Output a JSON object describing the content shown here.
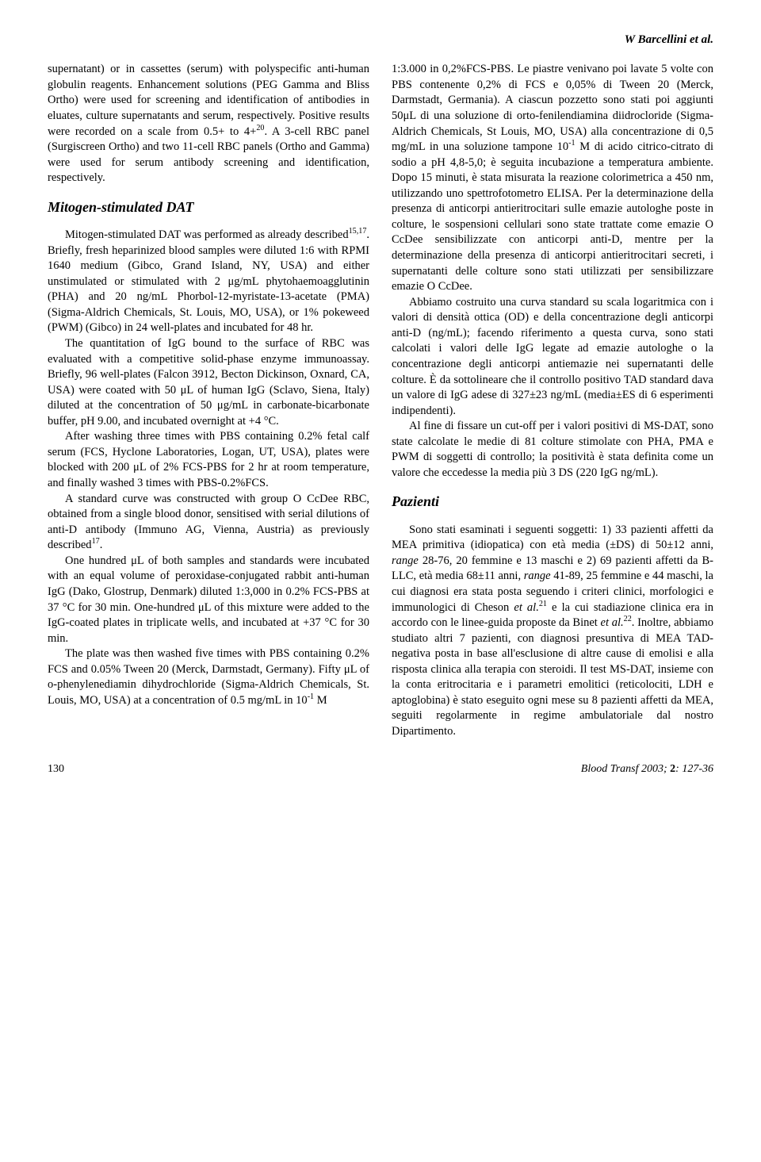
{
  "header": {
    "running_head": "W Barcellini et al."
  },
  "left_col": {
    "p1": "supernatant) or in cassettes (serum) with polyspecific anti-human globulin reagents. Enhancement solutions (PEG Gamma and Bliss Ortho) were used for screening and identification of antibodies in eluates, culture supernatants and serum, respectively. Positive results were recorded on a scale from 0.5+ to 4+20. A 3-cell RBC panel (Surgiscreen Ortho) and two 11-cell RBC panels (Ortho and Gamma) were used for serum antibody screening and identification, respectively.",
    "section1": "Mitogen-stimulated DAT",
    "p2": "Mitogen-stimulated DAT was performed as already described15,17. Briefly, fresh heparinized blood samples were diluted 1:6 with RPMI 1640 medium (Gibco, Grand Island, NY, USA) and either unstimulated or stimulated with 2 μg/mL phytohaemoagglutinin (PHA) and 20 ng/mL Phorbol-12-myristate-13-acetate (PMA) (Sigma-Aldrich Chemicals, St. Louis, MO, USA), or 1% pokeweed (PWM) (Gibco) in 24 well-plates and incubated for 48 hr.",
    "p3": "The quantitation of IgG bound to the surface of RBC was evaluated with a competitive solid-phase enzyme immunoassay. Briefly, 96 well-plates (Falcon 3912, Becton Dickinson, Oxnard, CA, USA) were coated with 50 μL of human IgG (Sclavo, Siena, Italy) diluted at the concentration of 50 μg/mL in carbonate-bicarbonate buffer, pH 9.00, and incubated overnight at +4 °C.",
    "p4": "After washing three times with PBS containing 0.2% fetal calf serum (FCS, Hyclone Laboratories, Logan, UT, USA), plates were blocked with 200 μL of 2% FCS-PBS for 2 hr at room temperature, and finally washed 3 times with PBS-0.2%FCS.",
    "p5": "A standard curve was constructed with group O CcDee RBC, obtained from a single blood donor, sensitised with serial dilutions of anti-D antibody (Immuno AG, Vienna, Austria) as previously described17.",
    "p6": "One hundred μL of both samples and standards were incubated with an equal volume of peroxidase-conjugated rabbit anti-human IgG (Dako, Glostrup, Denmark) diluted 1:3,000 in 0.2% FCS-PBS at 37 °C for 30 min. One-hundred μL of this mixture were added to the IgG-coated plates in triplicate wells, and incubated at +37 °C for 30 min.",
    "p7": "The plate was then washed five times with PBS containing 0.2% FCS and 0.05% Tween 20 (Merck, Darmstadt, Germany). Fifty μL of o-phenylenediamin dihydrochloride (Sigma-Aldrich Chemicals, St. Louis, MO, USA) at a concentration of 0.5 mg/mL in 10-1 M"
  },
  "right_col": {
    "p1": "1:3.000 in 0,2%FCS-PBS. Le piastre venivano poi lavate 5 volte con PBS contenente 0,2% di FCS e 0,05% di Tween 20 (Merck, Darmstadt, Germania). A ciascun pozzetto sono stati poi aggiunti 50μL di una soluzione di orto-fenilendiamina diidrocloride (Sigma-Aldrich Chemicals, St Louis, MO, USA) alla concentrazione di 0,5 mg/mL in una soluzione tampone 10-1 M di acido citrico-citrato di sodio a pH 4,8-5,0; è seguita incubazione a temperatura ambiente. Dopo 15 minuti, è stata misurata la reazione colorimetrica a 450 nm, utilizzando uno spettrofotometro ELISA. Per la determinazione della presenza di anticorpi antieritrocitari sulle emazie autologhe poste in colture, le sospensioni cellulari sono state trattate come emazie O CcDee sensibilizzate con anticorpi anti-D, mentre per la determinazione della presenza di anticorpi antieritrocitari secreti, i supernatanti delle colture sono stati utilizzati per sensibilizzare emazie O CcDee.",
    "p2": "Abbiamo costruito una curva standard su scala logaritmica con i valori di densità ottica (OD) e della concentrazione degli anticorpi anti-D (ng/mL); facendo riferimento a questa curva, sono stati calcolati i valori delle IgG legate ad emazie autologhe o la concentrazione degli anticorpi antiemazie nei supernatanti delle colture. È da sottolineare che il controllo positivo TAD standard dava un valore di IgG adese di 327±23 ng/mL (media±ES di 6 esperimenti indipendenti).",
    "p3": "Al fine di fissare un cut-off per i valori positivi di MS-DAT, sono state calcolate le medie di 81 colture stimolate con PHA, PMA e PWM di soggetti di controllo; la positività è stata definita come un valore che eccedesse la media più 3 DS (220 IgG ng/mL).",
    "section1": "Pazienti",
    "p4a": "Sono stati esaminati i seguenti soggetti: 1) 33 pazienti affetti da MEA primitiva (idiopatica) con età media (±DS) di 50±12 anni, ",
    "p4b": "range",
    "p4c": " 28-76, 20 femmine e 13 maschi e 2) 69 pazienti affetti da B-LLC, età media 68±11 anni, ",
    "p4d": "range",
    "p4e": " 41-89, 25 femmine e 44 maschi, la cui diagnosi era stata posta seguendo i criteri clinici, morfologici e immunologici di Cheson ",
    "p4f": "et al.",
    "p4g": "21 e la cui stadiazione clinica era in accordo con le linee-guida proposte da Binet ",
    "p4h": "et al.",
    "p4i": "22. Inoltre, abbiamo studiato altri 7 pazienti, con diagnosi presuntiva di MEA TAD-negativa posta in base all'esclusione di altre cause di emolisi e alla risposta clinica alla terapia con steroidi. Il test MS-DAT, insieme con la conta eritrocitaria e i parametri emolitici (reticolociti, LDH e aptoglobina) è stato eseguito ogni mese su 8 pazienti affetti da MEA, seguiti regolarmente in regime ambulatoriale dal nostro Dipartimento."
  },
  "footer": {
    "page": "130",
    "journal": "Blood Transf 2003; ",
    "vol": "2",
    "pages": ": 127-36"
  }
}
